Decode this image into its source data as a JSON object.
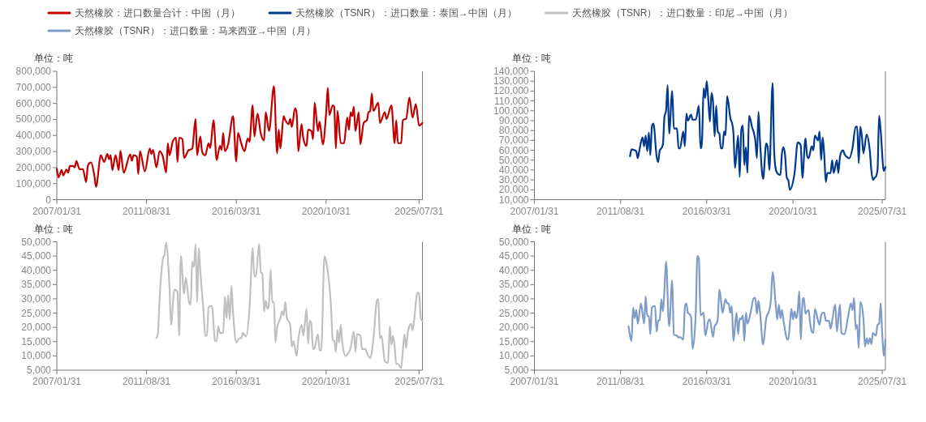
{
  "chart_data": [
    {
      "type": "line",
      "legend": "top",
      "ylabel": "单位：吨",
      "xlim": [
        "2007-01",
        "2025-09"
      ],
      "xticks": [
        {
          "value": "2007-01",
          "label": "2007/01/31"
        },
        {
          "value": "2011-08",
          "label": "2011/08/31"
        },
        {
          "value": "2016-03",
          "label": "2016/03/31"
        },
        {
          "value": "2020-10",
          "label": "2020/10/31"
        },
        {
          "value": "2025-07",
          "label": "2025/07/31"
        }
      ],
      "ylim": [
        0,
        800000
      ],
      "yticks": [
        0,
        {
          "value": 100000,
          "label": "100,000"
        },
        {
          "value": 200000,
          "label": "200,000"
        },
        {
          "value": 300000,
          "label": "300,000"
        },
        {
          "value": 400000,
          "label": "400,000"
        },
        {
          "value": 500000,
          "label": "500,000"
        },
        {
          "value": 600000,
          "label": "600,000"
        },
        {
          "value": 700000,
          "label": "700,000"
        },
        {
          "value": 800000,
          "label": "800,000"
        }
      ],
      "x": [
        "2007-01",
        "2007-02",
        "2007-04",
        "2007-05",
        "2007-07",
        "2007-08",
        "2007-09",
        "2007-11",
        "2007-12",
        "2008-01",
        "2008-03",
        "2008-05",
        "2008-07",
        "2008-08",
        "2008-10",
        "2008-12",
        "2009-01",
        "2009-04",
        "2009-06",
        "2009-08",
        "2009-09",
        "2009-10",
        "2009-11",
        "2010-01",
        "2010-03",
        "2010-04",
        "2010-06",
        "2010-10",
        "2010-11",
        "2010-12",
        "2011-02",
        "2011-03",
        "2011-04",
        "2011-07",
        "2011-10",
        "2011-11",
        "2011-12",
        "2012-02",
        "2012-04",
        "2012-06",
        "2012-08",
        "2012-09",
        "2012-10",
        "2012-12",
        "2013-02",
        "2013-03",
        "2013-04",
        "2013-06",
        "2013-07",
        "2013-10",
        "2013-12",
        "2014-02",
        "2014-03",
        "2014-05",
        "2014-06",
        "2014-08",
        "2014-10",
        "2014-11",
        "2015-01",
        "2015-03",
        "2015-05",
        "2015-06",
        "2015-07",
        "2015-08",
        "2015-10",
        "2016-01",
        "2016-03",
        "2016-04",
        "2016-06",
        "2016-08",
        "2016-10",
        "2016-11",
        "2017-01",
        "2017-02",
        "2017-04",
        "2017-06",
        "2017-08",
        "2017-09",
        "2017-11",
        "2018-02",
        "2018-04",
        "2018-05",
        "2018-06",
        "2018-08",
        "2018-09",
        "2018-11",
        "2018-12",
        "2019-01",
        "2019-03",
        "2019-04",
        "2019-05",
        "2019-07",
        "2019-08",
        "2019-10",
        "2019-11",
        "2020-01",
        "2020-02",
        "2020-03",
        "2020-05",
        "2020-06",
        "2020-08",
        "2020-10",
        "2020-11",
        "2020-12",
        "2021-02",
        "2021-03",
        "2021-04",
        "2021-05",
        "2021-07",
        "2021-09",
        "2021-10",
        "2021-11",
        "2021-12",
        "2022-01",
        "2022-02",
        "2022-03",
        "2022-04",
        "2022-06",
        "2022-07",
        "2022-09",
        "2022-11",
        "2022-12",
        "2023-01",
        "2023-02",
        "2023-03",
        "2023-06",
        "2023-07",
        "2023-10",
        "2023-11",
        "2024-02",
        "2024-04",
        "2024-05",
        "2024-06",
        "2024-08",
        "2024-09",
        "2024-11",
        "2025-01",
        "2025-03",
        "2025-05",
        "2025-07",
        "2025-09"
      ],
      "series": [
        {
          "name": "天然橡胶：进口数量合计：中国（月）",
          "color": "#c00000",
          "values": [
            193000,
            138000,
            185000,
            151000,
            188000,
            168000,
            210000,
            210000,
            201000,
            240000,
            190000,
            190000,
            109000,
            210000,
            232000,
            151000,
            80000,
            277000,
            235000,
            285000,
            252000,
            277000,
            185000,
            277000,
            185000,
            305000,
            168000,
            282000,
            243000,
            277000,
            268000,
            159000,
            302000,
            176000,
            319000,
            285000,
            310000,
            201000,
            302000,
            268000,
            168000,
            352000,
            277000,
            360000,
            386000,
            235000,
            386000,
            377000,
            260000,
            310000,
            319000,
            503000,
            277000,
            394000,
            302000,
            277000,
            352000,
            322000,
            495000,
            248000,
            335000,
            310000,
            416000,
            302000,
            344000,
            520000,
            238000,
            416000,
            352000,
            302000,
            382000,
            360000,
            587000,
            394000,
            537000,
            411000,
            369000,
            545000,
            428000,
            708000,
            289000,
            436000,
            319000,
            520000,
            495000,
            470000,
            503000,
            453000,
            570000,
            537000,
            302000,
            470000,
            386000,
            335000,
            436000,
            428000,
            377000,
            604000,
            428000,
            487000,
            344000,
            537000,
            696000,
            528000,
            587000,
            579000,
            319000,
            553000,
            352000,
            352000,
            436000,
            512000,
            436000,
            545000,
            520000,
            579000,
            428000,
            545000,
            344000,
            478000,
            495000,
            545000,
            553000,
            662000,
            553000,
            604000,
            478000,
            545000,
            503000,
            587000,
            352000,
            495000,
            352000,
            352000,
            495000,
            503000,
            637000,
            512000,
            595000,
            461000,
            478000
          ]
        }
      ]
    },
    {
      "type": "line",
      "legend": "top",
      "ylabel": "单位：吨",
      "xlim": [
        "2007-01",
        "2025-09"
      ],
      "xticks": [
        {
          "value": "2007-01",
          "label": "2007/01/31"
        },
        {
          "value": "2011-08",
          "label": "2011/08/31"
        },
        {
          "value": "2016-03",
          "label": "2016/03/31"
        },
        {
          "value": "2020-10",
          "label": "2020/10/31"
        },
        {
          "value": "2025-07",
          "label": "2025/07/31"
        }
      ],
      "ylim": [
        10000,
        140000
      ],
      "yticks": [
        {
          "value": 10000,
          "label": "10,000"
        },
        {
          "value": 20000,
          "label": "20,000"
        },
        {
          "value": 30000,
          "label": "30,000"
        },
        {
          "value": 40000,
          "label": "40,000"
        },
        {
          "value": 50000,
          "label": "50,000"
        },
        {
          "value": 60000,
          "label": "60,000"
        },
        {
          "value": 70000,
          "label": "70,000"
        },
        {
          "value": 80000,
          "label": "80,000"
        },
        {
          "value": 90000,
          "label": "90,000"
        },
        {
          "value": 100000,
          "label": "100,000"
        },
        {
          "value": 110000,
          "label": "110,000"
        },
        {
          "value": 120000,
          "label": "120,000"
        },
        {
          "value": 130000,
          "label": "130,000"
        },
        {
          "value": 140000,
          "label": "140,000"
        }
      ],
      "x": [
        "2012-02",
        "2012-03",
        "2012-05",
        "2012-06",
        "2012-07",
        "2012-08",
        "2012-10",
        "2012-11",
        "2012-12",
        "2013-01",
        "2013-02",
        "2013-03",
        "2013-04",
        "2013-05",
        "2013-07",
        "2013-08",
        "2013-09",
        "2013-11",
        "2013-12",
        "2014-01",
        "2014-02",
        "2014-03",
        "2014-05",
        "2014-06",
        "2014-08",
        "2014-09",
        "2014-10",
        "2014-12",
        "2015-01",
        "2015-02",
        "2015-03",
        "2015-05",
        "2015-06",
        "2015-08",
        "2015-10",
        "2015-11",
        "2015-12",
        "2016-01",
        "2016-02",
        "2016-03",
        "2016-04",
        "2016-05",
        "2016-06",
        "2016-07",
        "2016-08",
        "2016-09",
        "2016-10",
        "2016-11",
        "2016-12",
        "2017-01",
        "2017-02",
        "2017-03",
        "2017-04",
        "2017-06",
        "2017-08",
        "2017-09",
        "2017-11",
        "2017-12",
        "2018-01",
        "2018-02",
        "2018-03",
        "2018-04",
        "2018-05",
        "2018-06",
        "2018-08",
        "2018-09",
        "2018-10",
        "2018-11",
        "2018-12",
        "2019-01",
        "2019-03",
        "2019-05",
        "2019-06",
        "2019-07",
        "2019-09",
        "2019-10",
        "2019-12",
        "2020-02",
        "2020-03",
        "2020-04",
        "2020-05",
        "2020-06",
        "2020-07",
        "2020-08",
        "2020-11",
        "2021-01",
        "2021-03",
        "2021-04",
        "2021-06",
        "2021-07",
        "2021-08",
        "2021-10",
        "2021-11",
        "2021-12",
        "2022-02",
        "2022-03",
        "2022-04",
        "2022-05",
        "2022-06",
        "2022-07",
        "2022-08",
        "2022-10",
        "2022-11",
        "2022-12",
        "2023-02",
        "2023-03",
        "2023-04",
        "2023-06",
        "2023-07",
        "2023-10",
        "2023-12",
        "2024-02",
        "2024-03",
        "2024-04",
        "2024-05",
        "2024-06",
        "2024-07",
        "2024-09",
        "2024-11",
        "2024-12",
        "2025-01",
        "2025-02",
        "2025-04",
        "2025-05",
        "2025-06",
        "2025-08",
        "2025-09"
      ],
      "series": [
        {
          "name": "天然橡胶（TSNR）：进口数量：泰国→中国（月）",
          "color": "#003a8c",
          "values": [
            54000,
            61000,
            60000,
            59000,
            52000,
            60000,
            73000,
            64000,
            75000,
            59000,
            78000,
            55000,
            84000,
            87000,
            54000,
            48000,
            60000,
            66000,
            94000,
            100000,
            126000,
            77000,
            120000,
            82000,
            82000,
            62000,
            62000,
            79000,
            64000,
            97000,
            90000,
            96000,
            91000,
            91000,
            105000,
            62000,
            70000,
            123000,
            113000,
            130000,
            111000,
            89000,
            118000,
            109000,
            74000,
            105000,
            79000,
            77000,
            62000,
            62000,
            79000,
            75000,
            115000,
            93000,
            78000,
            42000,
            75000,
            33000,
            80000,
            85000,
            45000,
            63000,
            37000,
            95000,
            83000,
            78000,
            70000,
            52000,
            99000,
            68000,
            31000,
            67000,
            62000,
            40000,
            128000,
            60000,
            37000,
            35000,
            57000,
            63000,
            55000,
            33000,
            30000,
            20000,
            37000,
            68000,
            65000,
            32000,
            72000,
            55000,
            52000,
            64000,
            60000,
            75000,
            70000,
            79000,
            50000,
            73000,
            55000,
            28000,
            37000,
            37000,
            50000,
            37000,
            50000,
            37000,
            53000,
            60000,
            56000,
            52000,
            62000,
            84000,
            84000,
            47000,
            84000,
            74000,
            57000,
            76000,
            60000,
            40000,
            30000,
            32000,
            40000,
            95000,
            80000,
            39000,
            43000
          ]
        }
      ]
    },
    {
      "type": "line",
      "legend": "top",
      "ylabel": "单位：吨",
      "xlim": [
        "2007-01",
        "2025-09"
      ],
      "xticks": [
        {
          "value": "2007-01",
          "label": "2007/01/31"
        },
        {
          "value": "2011-08",
          "label": "2011/08/31"
        },
        {
          "value": "2016-03",
          "label": "2016/03/31"
        },
        {
          "value": "2020-10",
          "label": "2020/10/31"
        },
        {
          "value": "2025-07",
          "label": "2025/07/31"
        }
      ],
      "ylim": [
        5000,
        50000
      ],
      "yticks": [
        {
          "value": 5000,
          "label": "5,000"
        },
        {
          "value": 10000,
          "label": "10,000"
        },
        {
          "value": 15000,
          "label": "15,000"
        },
        {
          "value": 20000,
          "label": "20,000"
        },
        {
          "value": 25000,
          "label": "25,000"
        },
        {
          "value": 30000,
          "label": "30,000"
        },
        {
          "value": 35000,
          "label": "35,000"
        },
        {
          "value": 40000,
          "label": "40,000"
        },
        {
          "value": 45000,
          "label": "45,000"
        },
        {
          "value": 50000,
          "label": "50,000"
        }
      ],
      "x": [
        "2012-02",
        "2012-03",
        "2012-04",
        "2012-06",
        "2012-07",
        "2012-08",
        "2012-10",
        "2012-11",
        "2013-01",
        "2013-03",
        "2013-04",
        "2013-05",
        "2013-07",
        "2013-08",
        "2013-10",
        "2013-11",
        "2013-12",
        "2014-01",
        "2014-02",
        "2014-03",
        "2014-04",
        "2014-05",
        "2014-07",
        "2014-08",
        "2014-09",
        "2014-10",
        "2014-12",
        "2015-02",
        "2015-03",
        "2015-04",
        "2015-05",
        "2015-07",
        "2015-08",
        "2015-09",
        "2015-10",
        "2015-11",
        "2015-12",
        "2016-01",
        "2016-03",
        "2016-05",
        "2016-06",
        "2016-07",
        "2016-09",
        "2016-11",
        "2017-01",
        "2017-02",
        "2017-03",
        "2017-05",
        "2017-06",
        "2017-07",
        "2017-08",
        "2017-09",
        "2017-10",
        "2017-11",
        "2017-12",
        "2018-01",
        "2018-02",
        "2018-03",
        "2018-04",
        "2018-06",
        "2018-07",
        "2018-08",
        "2018-09",
        "2018-10",
        "2018-12",
        "2019-01",
        "2019-02",
        "2019-04",
        "2019-05",
        "2019-07",
        "2019-08",
        "2019-09",
        "2019-10",
        "2019-11",
        "2019-12",
        "2020-01",
        "2020-02",
        "2020-03",
        "2020-05",
        "2020-06",
        "2020-07",
        "2020-09",
        "2020-10",
        "2020-12",
        "2021-01",
        "2021-02",
        "2021-03",
        "2021-04",
        "2021-05",
        "2021-06",
        "2021-07",
        "2021-08",
        "2021-10",
        "2021-11",
        "2022-01",
        "2022-03",
        "2022-04",
        "2022-05",
        "2022-07",
        "2022-08",
        "2022-10",
        "2022-11",
        "2023-01",
        "2023-03",
        "2023-05",
        "2023-06",
        "2023-07",
        "2023-08",
        "2023-09",
        "2023-10",
        "2023-12",
        "2024-01",
        "2024-02",
        "2024-03",
        "2024-04",
        "2024-05",
        "2024-06",
        "2024-08",
        "2024-09",
        "2024-10",
        "2024-11",
        "2024-12",
        "2025-02",
        "2025-03",
        "2025-04",
        "2025-06",
        "2025-07",
        "2025-08",
        "2025-09"
      ],
      "series": [
        {
          "name": "天然橡胶（TSNR）：进口数量：印尼→中国（月）",
          "color": "#c0c0c0",
          "values": [
            16300,
            17800,
            30300,
            44000,
            45500,
            49700,
            34600,
            20900,
            33200,
            32200,
            17100,
            45000,
            31700,
            37400,
            28900,
            28000,
            43100,
            41200,
            49200,
            28900,
            47800,
            39300,
            25100,
            17100,
            17100,
            27000,
            27500,
            15200,
            15200,
            20400,
            18000,
            18000,
            30800,
            23200,
            31300,
            22800,
            34600,
            25100,
            14700,
            16200,
            16200,
            18000,
            16800,
            26100,
            47800,
            37900,
            37900,
            49200,
            39300,
            38800,
            25600,
            29400,
            26500,
            28400,
            40200,
            28900,
            28900,
            14700,
            19900,
            23200,
            25600,
            24200,
            28900,
            23200,
            20900,
            13300,
            15200,
            10000,
            15700,
            20900,
            17100,
            21300,
            26500,
            14300,
            22300,
            20900,
            12400,
            12800,
            17600,
            11900,
            11900,
            45000,
            43100,
            34600,
            27000,
            15700,
            15200,
            11400,
            19000,
            14700,
            20900,
            14300,
            10000,
            10500,
            12800,
            18500,
            11400,
            17600,
            17100,
            12400,
            12400,
            11000,
            9300,
            15700,
            28900,
            29900,
            16200,
            17100,
            12400,
            8100,
            7600,
            20400,
            13800,
            17100,
            13300,
            7200,
            7200,
            5800,
            11900,
            17600,
            12800,
            18000,
            21300,
            19000,
            22800,
            32200,
            31700,
            23200,
            22300
          ]
        }
      ]
    },
    {
      "type": "line",
      "legend": "top",
      "ylabel": "单位：吨",
      "xlim": [
        "2007-01",
        "2025-09"
      ],
      "xticks": [
        {
          "value": "2007-01",
          "label": "2007/01/31"
        },
        {
          "value": "2011-08",
          "label": "2011/08/31"
        },
        {
          "value": "2016-03",
          "label": "2016/03/31"
        },
        {
          "value": "2020-10",
          "label": "2020/10/31"
        },
        {
          "value": "2025-07",
          "label": "2025/07/31"
        }
      ],
      "ylim": [
        5000,
        50000
      ],
      "yticks": [
        {
          "value": 5000,
          "label": "5,000"
        },
        {
          "value": 10000,
          "label": "10,000"
        },
        {
          "value": 15000,
          "label": "15,000"
        },
        {
          "value": 20000,
          "label": "20,000"
        },
        {
          "value": 25000,
          "label": "25,000"
        },
        {
          "value": 30000,
          "label": "30,000"
        },
        {
          "value": 35000,
          "label": "35,000"
        },
        {
          "value": 40000,
          "label": "40,000"
        },
        {
          "value": 45000,
          "label": "45,000"
        },
        {
          "value": 50000,
          "label": "50,000"
        }
      ],
      "x": [
        "2012-01",
        "2012-03",
        "2012-04",
        "2012-05",
        "2012-06",
        "2012-07",
        "2012-09",
        "2012-11",
        "2012-12",
        "2013-01",
        "2013-02",
        "2013-03",
        "2013-04",
        "2013-06",
        "2013-07",
        "2013-08",
        "2013-09",
        "2013-10",
        "2013-11",
        "2013-12",
        "2014-01",
        "2014-03",
        "2014-05",
        "2014-06",
        "2014-08",
        "2014-09",
        "2014-10",
        "2014-12",
        "2015-01",
        "2015-02",
        "2015-03",
        "2015-05",
        "2015-06",
        "2015-08",
        "2015-09",
        "2015-10",
        "2015-11",
        "2016-01",
        "2016-02",
        "2016-04",
        "2016-05",
        "2016-07",
        "2016-08",
        "2016-10",
        "2016-11",
        "2016-12",
        "2017-01",
        "2017-03",
        "2017-04",
        "2017-05",
        "2017-06",
        "2017-07",
        "2017-08",
        "2017-10",
        "2017-11",
        "2017-12",
        "2018-01",
        "2018-02",
        "2018-03",
        "2018-04",
        "2018-05",
        "2018-07",
        "2018-09",
        "2018-10",
        "2018-11",
        "2018-12",
        "2019-01",
        "2019-03",
        "2019-05",
        "2019-07",
        "2019-08",
        "2019-09",
        "2019-11",
        "2019-12",
        "2020-01",
        "2020-02",
        "2020-03",
        "2020-04",
        "2020-06",
        "2020-07",
        "2020-09",
        "2020-10",
        "2020-11",
        "2020-12",
        "2021-01",
        "2021-02",
        "2021-03",
        "2021-04",
        "2021-05",
        "2021-06",
        "2021-07",
        "2021-08",
        "2021-09",
        "2021-10",
        "2021-11",
        "2021-12",
        "2022-02",
        "2022-03",
        "2022-04",
        "2022-05",
        "2022-06",
        "2022-07",
        "2022-09",
        "2022-10",
        "2022-11",
        "2023-01",
        "2023-02",
        "2023-04",
        "2023-05",
        "2023-07",
        "2023-09",
        "2023-11",
        "2023-12",
        "2024-01",
        "2024-02",
        "2024-03",
        "2024-04",
        "2024-05",
        "2024-07",
        "2024-08",
        "2024-09",
        "2024-10",
        "2024-11",
        "2024-12",
        "2025-01",
        "2025-03",
        "2025-04",
        "2025-05",
        "2025-06",
        "2025-07",
        "2025-08",
        "2025-09"
      ],
      "series": [
        {
          "name": "天然橡胶（TSNR）：进口数量：马来西亚→中国（月）",
          "color": "#7f9cc8",
          "values": [
            20400,
            15200,
            27000,
            23200,
            26100,
            21300,
            28400,
            21300,
            30800,
            24000,
            24000,
            17600,
            27000,
            27500,
            18500,
            22500,
            22500,
            29900,
            25600,
            33200,
            43100,
            20400,
            36500,
            17600,
            17100,
            16400,
            16600,
            15700,
            27000,
            28400,
            25100,
            23700,
            12400,
            25100,
            45000,
            44000,
            24200,
            25100,
            17100,
            22300,
            22800,
            16600,
            20400,
            22800,
            33200,
            29900,
            25100,
            29900,
            28400,
            28400,
            25100,
            27500,
            15200,
            25100,
            17600,
            23200,
            22800,
            24200,
            15200,
            25100,
            21300,
            25100,
            30300,
            30300,
            24700,
            29400,
            25100,
            14000,
            23200,
            26100,
            29900,
            39300,
            28000,
            22800,
            28000,
            23200,
            26100,
            22300,
            16200,
            15700,
            26500,
            22800,
            25600,
            23200,
            25600,
            32700,
            15700,
            28000,
            30300,
            24700,
            25600,
            26100,
            21300,
            18500,
            18000,
            26500,
            22300,
            20900,
            24200,
            25100,
            25100,
            22300,
            22300,
            19500,
            22300,
            28000,
            18500,
            28000,
            18000,
            17600,
            23200,
            28400,
            26100,
            30300,
            19500,
            20900,
            12800,
            28900,
            23200,
            13300,
            16200,
            14200,
            16200,
            14200,
            18000,
            17100,
            20900,
            21300,
            28400,
            17600,
            10000,
            15700
          ]
        }
      ]
    }
  ]
}
